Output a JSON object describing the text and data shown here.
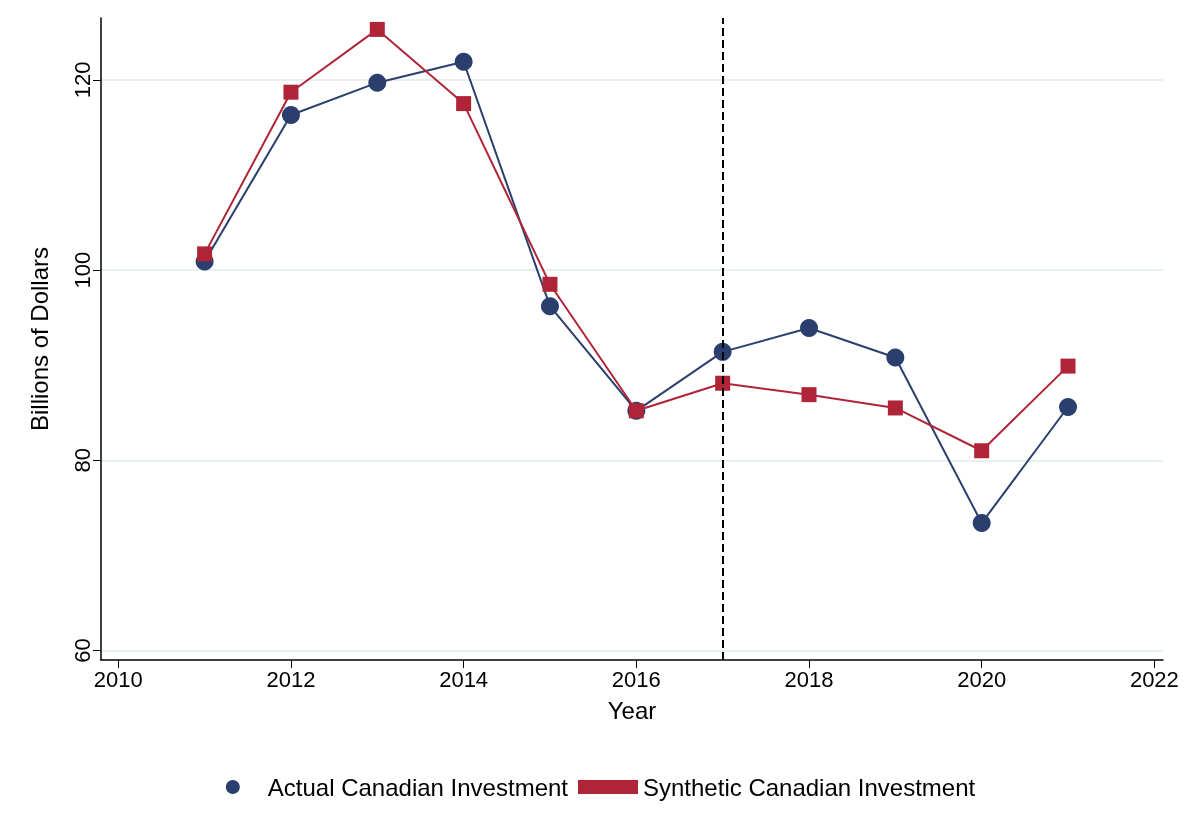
{
  "chart_data": {
    "type": "line",
    "xlabel": "Year",
    "ylabel": "Billions of Dollars",
    "x": [
      2011,
      2012,
      2013,
      2014,
      2015,
      2016,
      2017,
      2018,
      2019,
      2020,
      2021
    ],
    "series": [
      {
        "name": "Actual Canadian Investment",
        "color": "#2a3f6e",
        "marker": "circle",
        "values": [
          100.9,
          116.3,
          119.7,
          121.9,
          96.2,
          85.2,
          91.4,
          93.9,
          90.8,
          73.4,
          85.6
        ]
      },
      {
        "name": "Synthetic Canadian Investment",
        "color": "#b02437",
        "marker": "square",
        "values": [
          101.7,
          118.7,
          125.3,
          117.5,
          98.5,
          85.2,
          88.1,
          86.9,
          85.5,
          81.0,
          89.9
        ]
      }
    ],
    "xlim": [
      2009.8,
      2022.1
    ],
    "xticks": [
      2010,
      2012,
      2014,
      2016,
      2018,
      2020,
      2022
    ],
    "ylim": [
      59,
      126.5
    ],
    "yticks": [
      60,
      80,
      100,
      120
    ],
    "grid": "y",
    "legend": "bottom",
    "line_style": "solid",
    "ref_lines": [
      {
        "axis": "x",
        "value": 2017,
        "color": "#000000",
        "line_style": "dashed"
      }
    ]
  }
}
